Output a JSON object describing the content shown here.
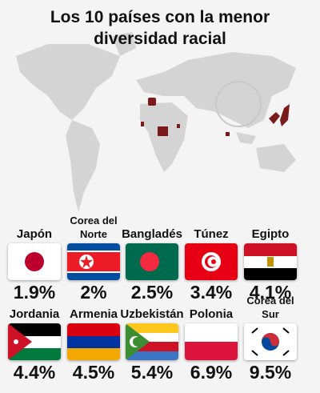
{
  "header": {
    "title": "Los 10 países con la menor diversidad racial"
  },
  "countries": [
    {
      "name": "Japón",
      "value": "1.9%"
    },
    {
      "name": "Corea del Norte",
      "value": "2%"
    },
    {
      "name": "Bangladés",
      "value": "2.5%"
    },
    {
      "name": "Túnez",
      "value": "3.4%"
    },
    {
      "name": "Egipto",
      "value": "4.1%"
    },
    {
      "name": "Jordania",
      "value": "4.4%"
    },
    {
      "name": "Armenia",
      "value": "4.5%"
    },
    {
      "name": "Uzbekistán",
      "value": "5.4%"
    },
    {
      "name": "Polonia",
      "value": "6.9%"
    },
    {
      "name": "Corea del Sur",
      "value": "9.5%"
    }
  ]
}
